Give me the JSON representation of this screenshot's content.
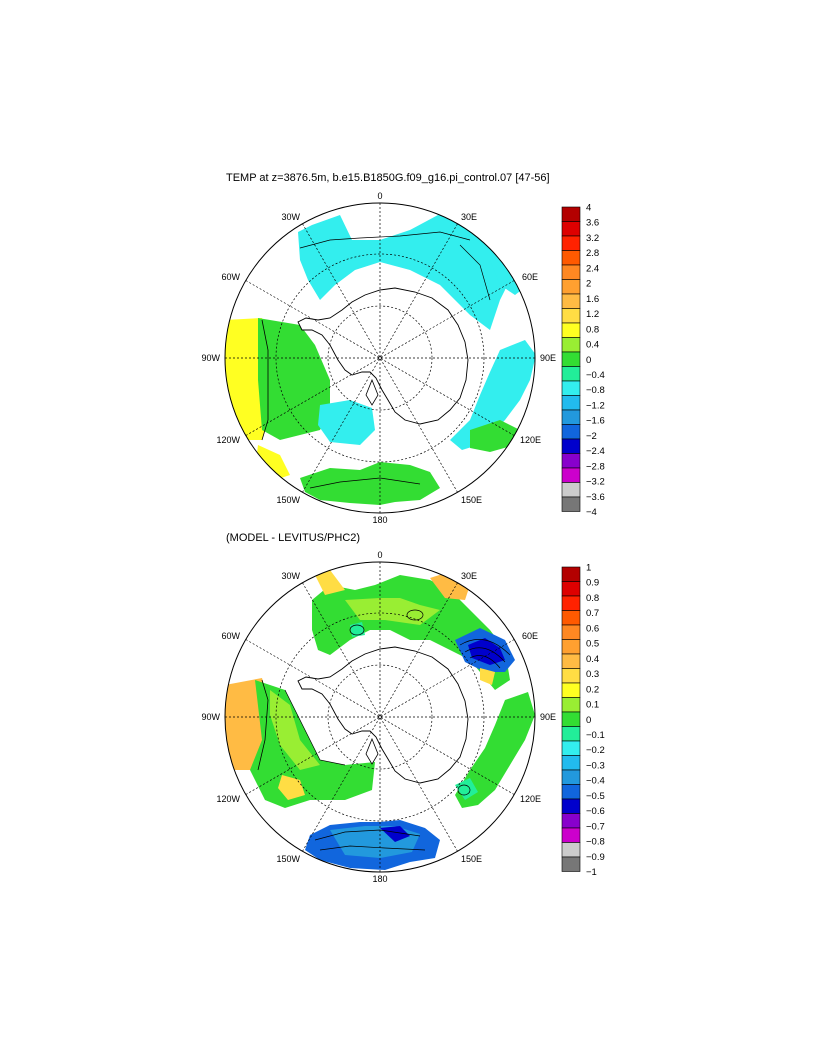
{
  "panels": [
    {
      "title": "TEMP at z=3876.5m, b.e15.B1850G.f09_g16.pi_control.07 [47-56]",
      "lon_labels": [
        "0",
        "30E",
        "60E",
        "90E",
        "120E",
        "150E",
        "180",
        "150W",
        "120W",
        "90W",
        "60W",
        "30W"
      ],
      "colorbar": {
        "labels": [
          "4",
          "3.6",
          "3.2",
          "2.8",
          "2.4",
          "2",
          "1.6",
          "1.2",
          "0.8",
          "0.4",
          "0",
          "−0.4",
          "−0.8",
          "−1.2",
          "−1.6",
          "−2",
          "−2.4",
          "−2.8",
          "−3.2",
          "−3.6",
          "−4"
        ],
        "colors": [
          "#b30000",
          "#dd0000",
          "#ff2200",
          "#ff5a00",
          "#ff8822",
          "#ffa030",
          "#ffbb44",
          "#ffdd44",
          "#ffff22",
          "#99ee33",
          "#33dd33",
          "#22ee99",
          "#33eeee",
          "#22bbee",
          "#2299dd",
          "#1166dd",
          "#0000cc",
          "#8800cc",
          "#cc00cc",
          "#cccccc",
          "#777777"
        ]
      }
    },
    {
      "title": "(MODEL - LEVITUS/PHC2)",
      "lon_labels": [
        "0",
        "30E",
        "60E",
        "90E",
        "120E",
        "150E",
        "180",
        "150W",
        "120W",
        "90W",
        "60W",
        "30W"
      ],
      "colorbar": {
        "labels": [
          "1",
          "0.9",
          "0.8",
          "0.7",
          "0.6",
          "0.5",
          "0.4",
          "0.3",
          "0.2",
          "0.1",
          "0",
          "−0.1",
          "−0.2",
          "−0.3",
          "−0.4",
          "−0.5",
          "−0.6",
          "−0.7",
          "−0.8",
          "−0.9",
          "−1"
        ],
        "colors": [
          "#b30000",
          "#dd0000",
          "#ff2200",
          "#ff5a00",
          "#ff8822",
          "#ffa030",
          "#ffbb44",
          "#ffdd44",
          "#ffff22",
          "#99ee33",
          "#33dd33",
          "#22ee99",
          "#33eeee",
          "#22bbee",
          "#2299dd",
          "#1166dd",
          "#0000cc",
          "#8800cc",
          "#cc00cc",
          "#cccccc",
          "#777777"
        ]
      }
    }
  ]
}
